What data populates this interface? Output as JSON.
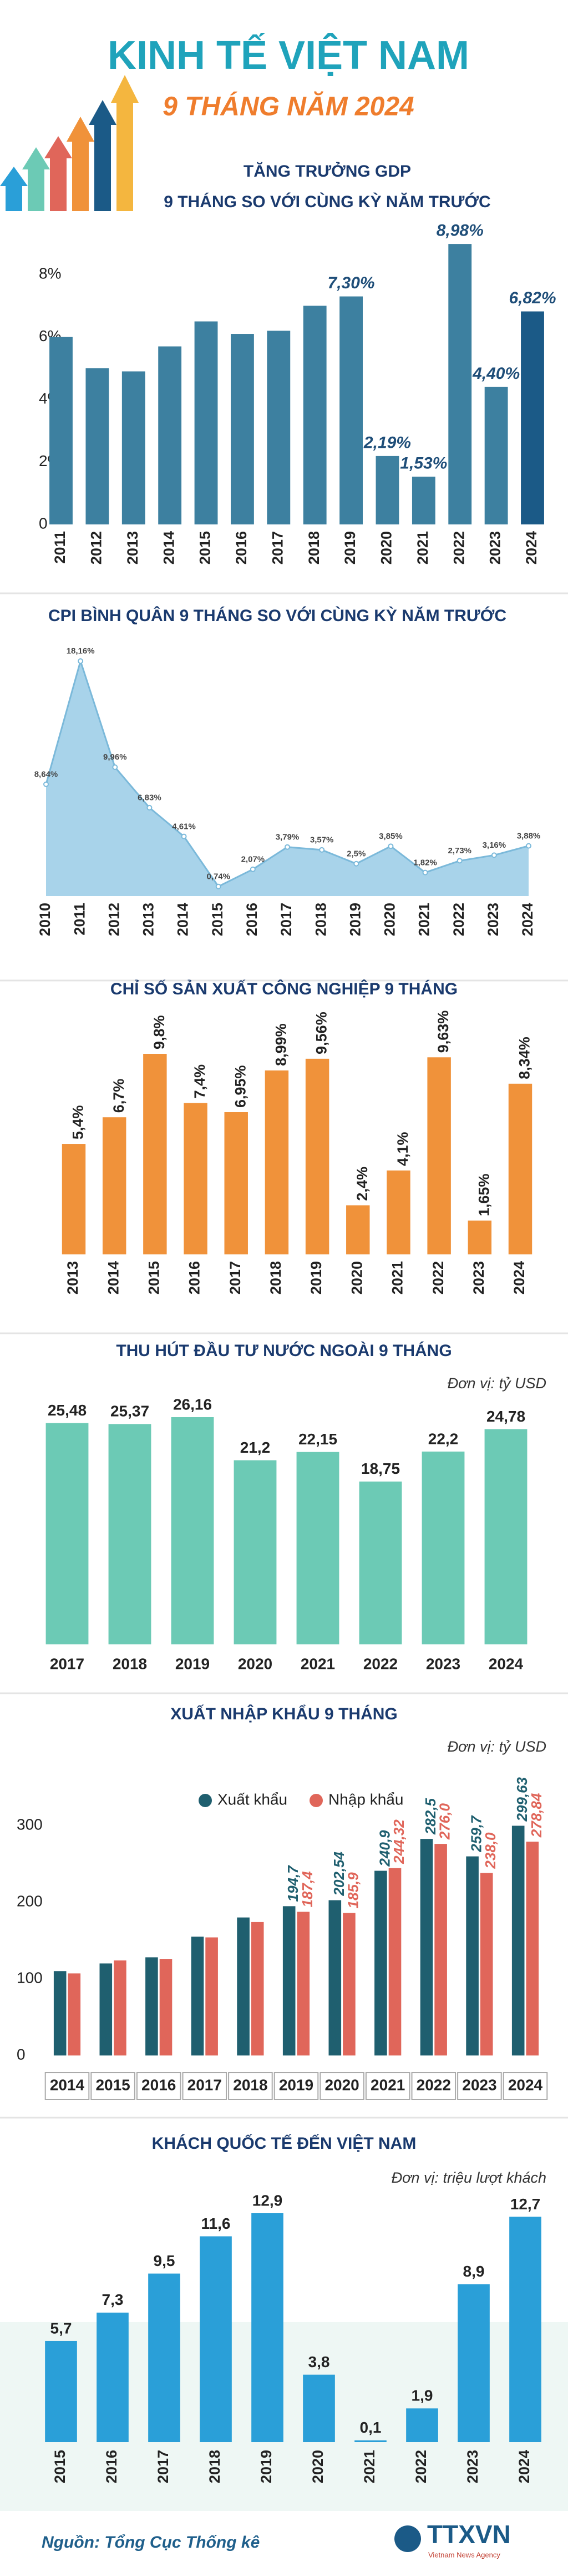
{
  "header": {
    "title": "KINH TẾ VIỆT NAM",
    "subtitle": "9 THÁNG NĂM 2024"
  },
  "chart_data": [
    {
      "type": "bar",
      "title": "TĂNG TRƯỞNG GDP",
      "subtitle": "9 THÁNG SO VỚI CÙNG KỲ NĂM TRƯỚC",
      "categories": [
        "2011",
        "2012",
        "2013",
        "2014",
        "2015",
        "2016",
        "2017",
        "2018",
        "2019",
        "2020",
        "2021",
        "2022",
        "2023",
        "2024"
      ],
      "values": [
        6.0,
        5.0,
        4.9,
        5.7,
        6.5,
        6.1,
        6.2,
        7.0,
        7.3,
        2.19,
        1.53,
        8.98,
        4.4,
        6.82
      ],
      "value_labels": [
        null,
        null,
        null,
        null,
        null,
        null,
        null,
        null,
        "7,30%",
        "2,19%",
        "1,53%",
        "8,98%",
        "4,40%",
        "6,82%"
      ],
      "colors": [
        "#3d80a0",
        "#3d80a0",
        "#3d80a0",
        "#3d80a0",
        "#3d80a0",
        "#3d80a0",
        "#3d80a0",
        "#3d80a0",
        "#3d80a0",
        "#3d80a0",
        "#3d80a0",
        "#3d80a0",
        "#3d80a0",
        "#1b5a87"
      ],
      "ylim": [
        0,
        9
      ],
      "yticks": [
        0,
        {
          "value": 2,
          "label": "2%"
        },
        {
          "value": 4,
          "label": "4%"
        },
        {
          "value": 6,
          "label": "6%"
        },
        {
          "value": 8,
          "label": "8%"
        }
      ],
      "grid": false
    },
    {
      "type": "area",
      "title": "CPI BÌNH QUÂN 9 THÁNG SO VỚI CÙNG KỲ NĂM TRƯỚC",
      "categories": [
        "2010",
        "2011",
        "2012",
        "2013",
        "2014",
        "2015",
        "2016",
        "2017",
        "2018",
        "2019",
        "2020",
        "2021",
        "2022",
        "2023",
        "2024"
      ],
      "values": [
        8.64,
        18.16,
        9.96,
        6.83,
        4.61,
        0.74,
        2.07,
        3.79,
        3.57,
        2.5,
        3.85,
        1.82,
        2.73,
        3.16,
        3.88
      ],
      "value_labels": [
        "8,64%",
        "18,16%",
        "9,96%",
        "6,83%",
        "4,61%",
        "0,74%",
        "2,07%",
        "3,79%",
        "3,57%",
        "2,5%",
        "3,85%",
        "1,82%",
        "2,73%",
        "3,16%",
        "3,88%"
      ],
      "color": "#a8d3ea"
    },
    {
      "type": "bar",
      "title": "CHỈ SỐ SẢN XUẤT CÔNG NGHIỆP 9 THÁNG",
      "categories": [
        "2013",
        "2014",
        "2015",
        "2016",
        "2017",
        "2018",
        "2019",
        "2020",
        "2021",
        "2022",
        "2023",
        "2024"
      ],
      "values": [
        5.4,
        6.7,
        9.8,
        7.4,
        6.95,
        8.99,
        9.56,
        2.4,
        4.1,
        9.63,
        1.65,
        8.34
      ],
      "value_labels": [
        "5,4%",
        "6,7%",
        "9,8%",
        "7,4%",
        "6,95%",
        "8,99%",
        "9,56%",
        "2,4%",
        "4,1%",
        "9,63%",
        "1,65%",
        "8,34%"
      ],
      "color": "#f0923a"
    },
    {
      "type": "bar",
      "title": "THU HÚT ĐẦU TƯ NƯỚC NGOÀI 9 THÁNG",
      "unit": "Đơn vị: tỷ USD",
      "categories": [
        "2017",
        "2018",
        "2019",
        "2020",
        "2021",
        "2022",
        "2023",
        "2024"
      ],
      "values": [
        25.48,
        25.37,
        26.16,
        21.2,
        22.15,
        18.75,
        22.2,
        24.78
      ],
      "value_labels": [
        "25,48",
        "25,37",
        "26,16",
        "21,2",
        "22,15",
        "18,75",
        "22,2",
        "24,78"
      ],
      "color": "#6ccab5"
    },
    {
      "type": "bar",
      "title": "XUẤT NHẬP KHẨU 9 THÁNG",
      "unit": "Đơn vị: tỷ USD",
      "categories": [
        "2014",
        "2015",
        "2016",
        "2017",
        "2018",
        "2019",
        "2020",
        "2021",
        "2022",
        "2023",
        "2024"
      ],
      "series": [
        {
          "name": "Xuất khẩu",
          "color": "#1f5f6f",
          "values": [
            110,
            120,
            128,
            155,
            180,
            194.7,
            202.54,
            240.9,
            282.5,
            259.7,
            299.63
          ],
          "value_labels": [
            null,
            null,
            null,
            null,
            null,
            "194,7",
            "202,54",
            "240,9",
            "282,5",
            "259,7",
            "299,63"
          ]
        },
        {
          "name": "Nhập khẩu",
          "color": "#e0665a",
          "values": [
            107,
            124,
            126,
            154,
            174,
            187.4,
            185.9,
            244.32,
            276.0,
            238.0,
            278.84
          ],
          "value_labels": [
            null,
            null,
            null,
            null,
            null,
            "187,4",
            "185,9",
            "244,32",
            "276,0",
            "238,0",
            "278,84"
          ]
        }
      ],
      "ylim": [
        0,
        300
      ],
      "yticks": [
        0,
        100,
        200,
        300
      ],
      "grid": false,
      "legend": "top"
    },
    {
      "type": "bar",
      "title": "KHÁCH QUỐC TẾ ĐẾN VIỆT NAM",
      "unit": "Đơn vị: triệu lượt khách",
      "categories": [
        "2015",
        "2016",
        "2017",
        "2018",
        "2019",
        "2020",
        "2021",
        "2022",
        "2023",
        "2024"
      ],
      "values": [
        5.7,
        7.3,
        9.5,
        11.6,
        12.9,
        3.8,
        0.1,
        1.9,
        8.9,
        12.7
      ],
      "value_labels": [
        "5,7",
        "7,3",
        "9,5",
        "11,6",
        "12,9",
        "3,8",
        "0,1",
        "1,9",
        "8,9",
        "12,7"
      ],
      "color": "#2a9fd8"
    }
  ],
  "footer": {
    "source": "Nguồn: Tổng Cục Thống kê",
    "logo": "TTXVN",
    "agency": "Vietnam News Agency"
  }
}
